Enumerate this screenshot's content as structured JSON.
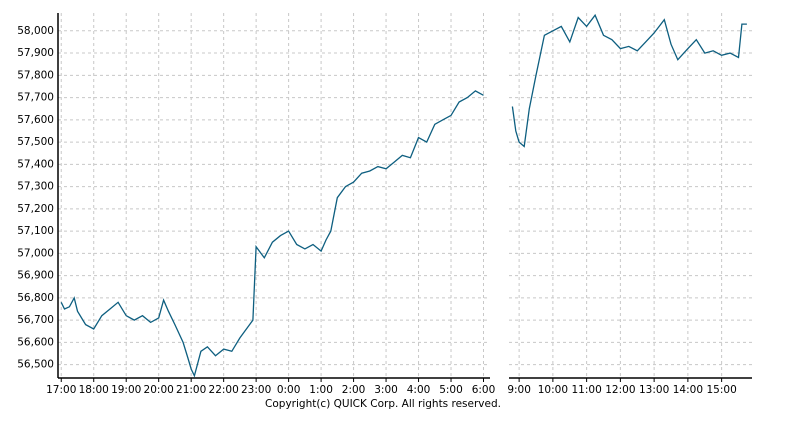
{
  "copyright": "Copyright(c) QUICK Corp. All rights reserved.",
  "chart_data": [
    {
      "type": "line",
      "color": "#0e5f80",
      "grid": true,
      "x": [
        17,
        17.1,
        17.25,
        17.4,
        17.5,
        17.75,
        18,
        18.25,
        18.5,
        18.75,
        19,
        19.25,
        19.5,
        19.75,
        20,
        20.15,
        20.3,
        20.5,
        20.75,
        20.9,
        21,
        21.1,
        21.3,
        21.5,
        21.75,
        22,
        22.25,
        22.5,
        22.8,
        22.9,
        23,
        23.25,
        23.5,
        23.75,
        24,
        24.25,
        24.5,
        24.75,
        25,
        25.15,
        25.3,
        25.5,
        25.75,
        26,
        26.25,
        26.5,
        26.75,
        27,
        27.25,
        27.5,
        27.75,
        28,
        28.25,
        28.5,
        28.75,
        29,
        29.25,
        29.5,
        29.75,
        30
      ],
      "values": [
        56780,
        56750,
        56760,
        56800,
        56740,
        56680,
        56660,
        56720,
        56750,
        56780,
        56720,
        56700,
        56720,
        56690,
        56710,
        56790,
        56740,
        56680,
        56600,
        56530,
        56480,
        56450,
        56560,
        56580,
        56540,
        56570,
        56560,
        56620,
        56680,
        56700,
        57030,
        56980,
        57050,
        57080,
        57100,
        57040,
        57020,
        57040,
        57010,
        57060,
        57100,
        57250,
        57300,
        57320,
        57360,
        57370,
        57390,
        57380,
        57410,
        57440,
        57430,
        57520,
        57500,
        57580,
        57600,
        57620,
        57680,
        57700,
        57730,
        57710
      ],
      "xlim": [
        16.9,
        30.2
      ],
      "ylim": [
        56440,
        58080
      ],
      "xticks": [
        {
          "value": 17,
          "label": "17:00"
        },
        {
          "value": 18,
          "label": "18:00"
        },
        {
          "value": 19,
          "label": "19:00"
        },
        {
          "value": 20,
          "label": "20:00"
        },
        {
          "value": 21,
          "label": "21:00"
        },
        {
          "value": 22,
          "label": "22:00"
        },
        {
          "value": 23,
          "label": "23:00"
        },
        {
          "value": 24,
          "label": "0:00"
        },
        {
          "value": 25,
          "label": "1:00"
        },
        {
          "value": 26,
          "label": "2:00"
        },
        {
          "value": 27,
          "label": "3:00"
        },
        {
          "value": 28,
          "label": "4:00"
        },
        {
          "value": 29,
          "label": "5:00"
        },
        {
          "value": 30,
          "label": "6:00"
        }
      ],
      "yticks": [
        {
          "value": 56500,
          "label": "56,500"
        },
        {
          "value": 56600,
          "label": "56,600"
        },
        {
          "value": 56700,
          "label": "56,700"
        },
        {
          "value": 56800,
          "label": "56,800"
        },
        {
          "value": 56900,
          "label": "56,900"
        },
        {
          "value": 57000,
          "label": "57,000"
        },
        {
          "value": 57100,
          "label": "57,100"
        },
        {
          "value": 57200,
          "label": "57,200"
        },
        {
          "value": 57300,
          "label": "57,300"
        },
        {
          "value": 57400,
          "label": "57,400"
        },
        {
          "value": 57500,
          "label": "57,500"
        },
        {
          "value": 57600,
          "label": "57,600"
        },
        {
          "value": 57700,
          "label": "57,700"
        },
        {
          "value": 57800,
          "label": "57,800"
        },
        {
          "value": 57900,
          "label": "57,900"
        },
        {
          "value": 58000,
          "label": "58,000"
        }
      ]
    },
    {
      "type": "line",
      "color": "#0e5f80",
      "grid": true,
      "x": [
        8.8,
        8.9,
        9,
        9.15,
        9.3,
        9.5,
        9.75,
        10,
        10.25,
        10.5,
        10.75,
        11,
        11.25,
        11.5,
        11.75,
        12,
        12.25,
        12.5,
        12.75,
        13,
        13.3,
        13.5,
        13.7,
        14,
        14.25,
        14.5,
        14.75,
        15,
        15.25,
        15.5,
        15.6,
        15.75
      ],
      "values": [
        57660,
        57550,
        57500,
        57480,
        57650,
        57800,
        57980,
        58000,
        58020,
        57950,
        58060,
        58020,
        58070,
        57980,
        57960,
        57920,
        57930,
        57910,
        57950,
        57990,
        58050,
        57940,
        57870,
        57920,
        57960,
        57900,
        57910,
        57890,
        57900,
        57880,
        58030,
        58030
      ],
      "xlim": [
        8.7,
        15.9
      ],
      "ylim": [
        56440,
        58080
      ],
      "xticks": [
        {
          "value": 9,
          "label": "9:00"
        },
        {
          "value": 10,
          "label": "10:00"
        },
        {
          "value": 11,
          "label": "11:00"
        },
        {
          "value": 12,
          "label": "12:00"
        },
        {
          "value": 13,
          "label": "13:00"
        },
        {
          "value": 14,
          "label": "14:00"
        },
        {
          "value": 15,
          "label": "15:00"
        }
      ]
    }
  ]
}
